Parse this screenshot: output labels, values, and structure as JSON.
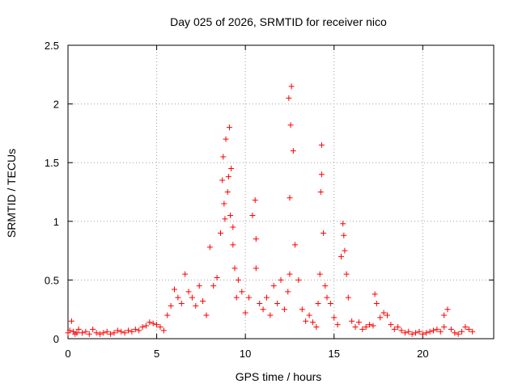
{
  "chart_data": {
    "type": "scatter",
    "title": "Day 025 of 2026, SRMTID for receiver nico",
    "xlabel": "GPS time / hours",
    "ylabel": "SRMTID / TECUs",
    "xlim": [
      0,
      24
    ],
    "ylim": [
      0,
      2.5
    ],
    "xticks": [
      0,
      5,
      10,
      15,
      20
    ],
    "yticks": [
      0,
      0.5,
      1,
      1.5,
      2,
      2.5
    ],
    "xtick_labels": [
      "0",
      "5",
      "10",
      "15",
      "20"
    ],
    "ytick_labels": [
      "0",
      "0.5",
      "1",
      "1.5",
      "2",
      "2.5"
    ],
    "grid": true,
    "marker": "+",
    "series": [
      {
        "name": "SRMTID",
        "color": "#ff0000",
        "x": [
          0.0,
          0.1,
          0.2,
          0.3,
          0.4,
          0.5,
          0.6,
          0.8,
          1.0,
          1.2,
          1.4,
          1.6,
          1.8,
          2.0,
          2.2,
          2.4,
          2.6,
          2.8,
          3.0,
          3.2,
          3.4,
          3.6,
          3.8,
          4.0,
          4.2,
          4.4,
          4.6,
          4.8,
          5.0,
          5.2,
          5.4,
          5.6,
          5.8,
          6.0,
          6.2,
          6.4,
          6.6,
          6.8,
          7.0,
          7.2,
          7.4,
          7.6,
          7.8,
          8.0,
          8.2,
          8.4,
          8.6,
          8.7,
          8.8,
          8.9,
          9.0,
          9.1,
          9.2,
          9.3,
          9.4,
          9.5,
          9.6,
          9.8,
          10.0,
          10.2,
          10.4,
          10.6,
          10.8,
          11.0,
          11.2,
          11.4,
          11.6,
          11.8,
          12.0,
          12.2,
          12.4,
          12.5,
          12.6,
          12.7,
          12.8,
          13.0,
          13.2,
          13.4,
          13.6,
          13.8,
          14.0,
          14.1,
          14.2,
          14.3,
          14.4,
          14.5,
          14.6,
          14.8,
          15.0,
          15.2,
          15.4,
          15.5,
          15.6,
          15.7,
          15.8,
          16.0,
          16.2,
          16.4,
          16.6,
          16.8,
          17.0,
          17.2,
          17.4,
          17.6,
          17.8,
          18.0,
          18.2,
          18.4,
          18.6,
          18.8,
          19.0,
          19.2,
          19.4,
          19.6,
          19.8,
          20.0,
          20.2,
          20.4,
          20.6,
          20.8,
          21.0,
          21.2,
          21.4,
          21.6,
          21.8,
          22.0,
          22.2,
          22.4,
          22.6,
          22.8,
          9.05,
          9.15,
          12.45,
          12.55,
          12.5,
          14.25,
          14.3,
          9.3,
          8.75,
          8.85,
          10.6,
          10.55,
          15.55,
          17.3,
          21.2
        ],
        "y": [
          0.05,
          0.07,
          0.15,
          0.06,
          0.04,
          0.05,
          0.08,
          0.05,
          0.06,
          0.04,
          0.08,
          0.05,
          0.04,
          0.05,
          0.06,
          0.04,
          0.05,
          0.07,
          0.06,
          0.05,
          0.07,
          0.06,
          0.08,
          0.07,
          0.1,
          0.11,
          0.14,
          0.13,
          0.12,
          0.1,
          0.07,
          0.2,
          0.28,
          0.42,
          0.35,
          0.3,
          0.55,
          0.4,
          0.35,
          0.28,
          0.45,
          0.32,
          0.2,
          0.78,
          0.45,
          0.52,
          0.9,
          1.35,
          1.15,
          1.7,
          1.25,
          1.8,
          1.45,
          0.8,
          0.6,
          0.35,
          0.5,
          0.4,
          0.22,
          0.35,
          1.05,
          0.6,
          0.3,
          0.25,
          0.35,
          0.2,
          0.45,
          0.3,
          0.5,
          0.25,
          0.4,
          0.55,
          2.15,
          1.6,
          0.8,
          0.5,
          0.25,
          0.15,
          0.2,
          0.14,
          0.1,
          0.3,
          0.55,
          1.65,
          0.9,
          0.45,
          0.35,
          0.3,
          0.18,
          0.12,
          0.7,
          0.98,
          0.75,
          0.55,
          0.35,
          0.15,
          0.1,
          0.14,
          0.08,
          0.1,
          0.12,
          0.11,
          0.3,
          0.18,
          0.22,
          0.2,
          0.12,
          0.08,
          0.1,
          0.07,
          0.05,
          0.06,
          0.04,
          0.05,
          0.06,
          0.04,
          0.05,
          0.06,
          0.07,
          0.08,
          0.06,
          0.1,
          0.25,
          0.08,
          0.05,
          0.04,
          0.06,
          0.1,
          0.08,
          0.06,
          1.38,
          1.05,
          2.05,
          1.82,
          1.2,
          1.25,
          1.4,
          0.95,
          1.55,
          1.02,
          0.85,
          1.18,
          0.88,
          0.38,
          0.2
        ]
      }
    ]
  }
}
